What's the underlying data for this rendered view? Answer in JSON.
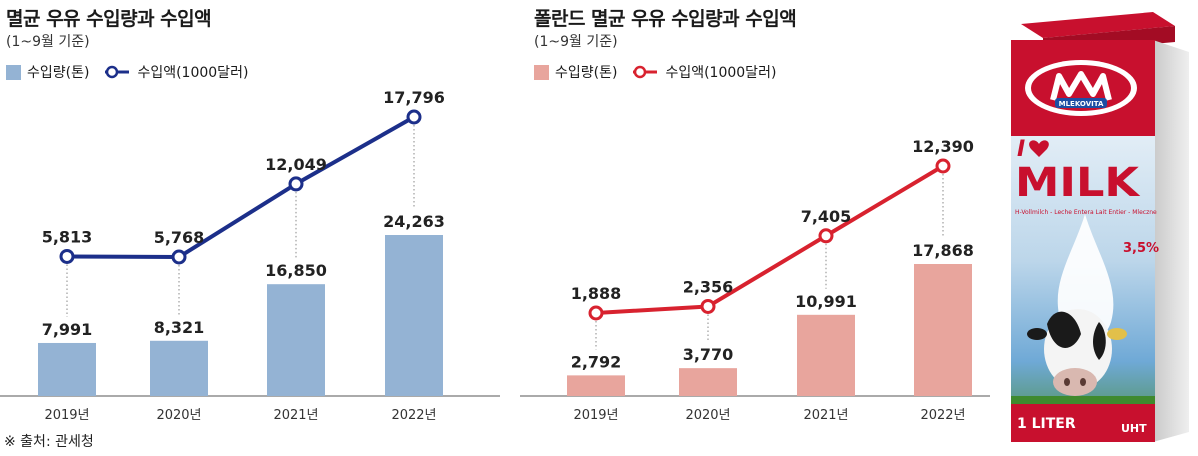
{
  "source": "※ 출처: 관세청",
  "charts": [
    {
      "title": "멸균 우유 수입량과 수입액",
      "subtitle": "(1~9월 기준)",
      "legend_bar": "수입량(톤)",
      "legend_line": "수입액(1000달러)",
      "bar_color": "#94b3d4",
      "line_color": "#1c2f8a"
    },
    {
      "title": "폴란드 멸균 우유 수입량과 수입액",
      "subtitle": "(1~9월 기준)",
      "legend_bar": "수입량(톤)",
      "legend_line": "수입액(1000달러)",
      "bar_color": "#e8a59d",
      "line_color": "#d8222f"
    }
  ],
  "chart_data": [
    {
      "type": "bar",
      "title": "멸균 우유 수입량과 수입액",
      "categories": [
        "2019년",
        "2020년",
        "2021년",
        "2022년"
      ],
      "series": [
        {
          "name": "수입량(톤)",
          "type": "bar",
          "values": [
            7991,
            8321,
            16850,
            24263
          ],
          "labels": [
            "7,991",
            "8,321",
            "16,850",
            "24,263"
          ]
        },
        {
          "name": "수입액(1000달러)",
          "type": "line",
          "values": [
            5813,
            5768,
            12049,
            17796
          ],
          "labels": [
            "5,813",
            "5,768",
            "12,049",
            "17,796"
          ]
        }
      ]
    },
    {
      "type": "bar",
      "title": "폴란드 멸균 우유 수입량과 수입액",
      "categories": [
        "2019년",
        "2020년",
        "2021년",
        "2022년"
      ],
      "series": [
        {
          "name": "수입량(톤)",
          "type": "bar",
          "values": [
            2792,
            3770,
            10991,
            17868
          ],
          "labels": [
            "2,792",
            "3,770",
            "10,991",
            "17,868"
          ]
        },
        {
          "name": "수입액(1000달러)",
          "type": "line",
          "values": [
            1888,
            2356,
            7405,
            12390
          ],
          "labels": [
            "1,888",
            "2,356",
            "7,405",
            "12,390"
          ]
        }
      ]
    }
  ],
  "carton": {
    "brand": "MLEKOVITA",
    "heading_i": "I",
    "heading_milk": "MILK",
    "fat": "3,5%",
    "volume": "1 LITER",
    "type": "UHT",
    "small_text": "H-Vollmilch - Leche Entera\nLait Entier - Mleczne"
  }
}
